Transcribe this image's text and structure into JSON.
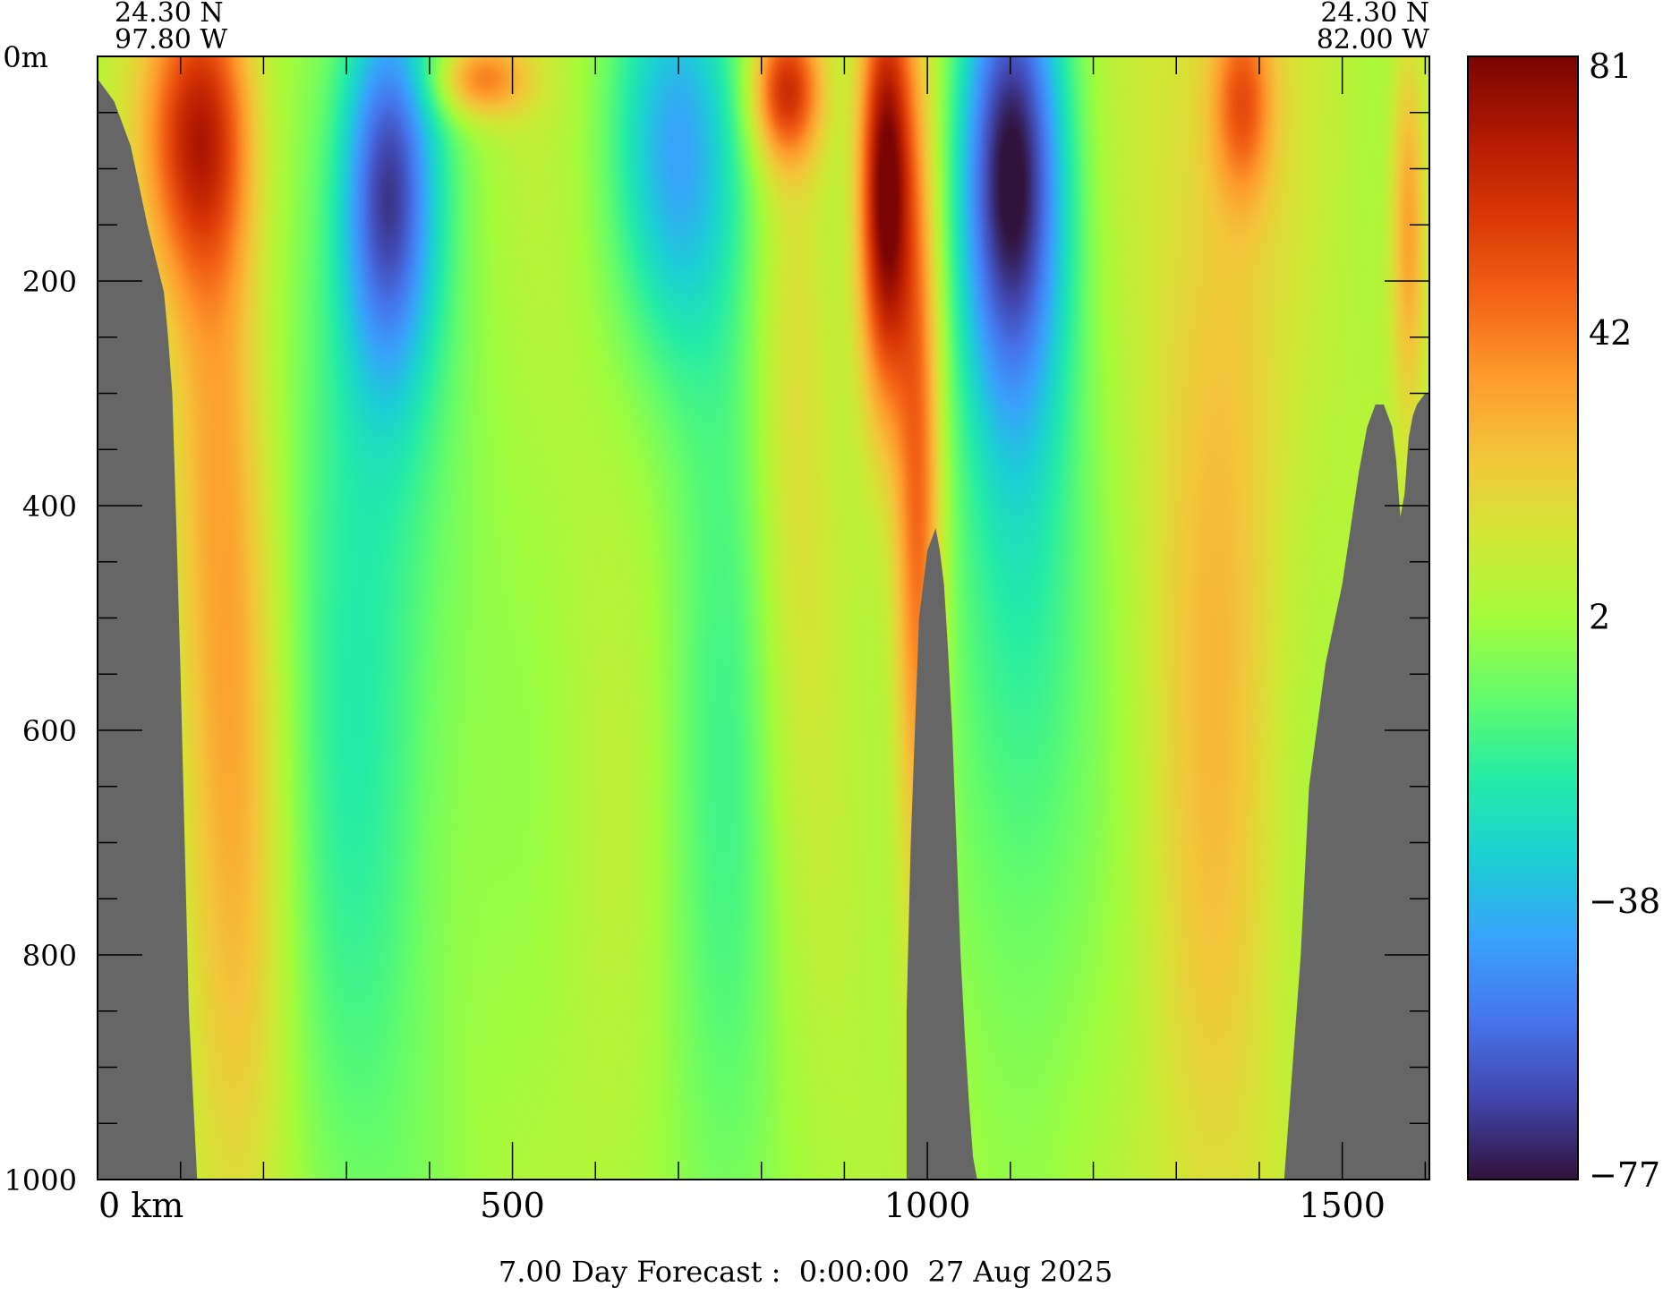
{
  "chart_data": {
    "type": "heatmap",
    "title": "",
    "corner_labels": {
      "left": {
        "lat": "24.30 N",
        "lon": "97.80 W"
      },
      "right": {
        "lat": "24.30 N",
        "lon": "82.00 W"
      }
    },
    "depth_axis": {
      "unit_label": "0m",
      "range": [
        0,
        1000
      ],
      "inverted": true,
      "tick_labels": [
        "200",
        "400",
        "600",
        "800",
        "1000"
      ],
      "tick_values": [
        200,
        400,
        600,
        800,
        1000
      ],
      "minor_step": 50
    },
    "distance_axis": {
      "unit_label": "0 km",
      "range": [
        0,
        1605
      ],
      "tick_labels": [
        "500",
        "1000",
        "1500"
      ],
      "tick_values": [
        500,
        1000,
        1500
      ],
      "minor_step": 100
    },
    "colorbar": {
      "range": [
        -77,
        81
      ],
      "tick_labels": [
        "81",
        "42",
        "2",
        "−38",
        "−77"
      ],
      "tick_values": [
        81,
        42,
        2,
        -38,
        -77
      ],
      "colors": [
        "#30123b",
        "#4145ab",
        "#4675ed",
        "#39a2fc",
        "#1bcfd4",
        "#24eca6",
        "#61fc6c",
        "#a4fc3b",
        "#d1e834",
        "#f3c63a",
        "#fe9b2d",
        "#f36315",
        "#d93806",
        "#b11901",
        "#7a0403"
      ]
    },
    "land_color": "#666666",
    "bathymetry": {
      "distance_km": [
        0,
        20,
        40,
        60,
        70,
        80,
        85,
        90,
        95,
        100,
        105,
        110,
        120,
        970,
        975,
        980,
        985,
        990,
        1000,
        1010,
        1015,
        1020,
        1025,
        1030,
        1035,
        1040,
        1045,
        1050,
        1055,
        1060,
        1430,
        1440,
        1450,
        1460,
        1480,
        1500,
        1510,
        1520,
        1530,
        1540,
        1550,
        1560,
        1565,
        1570,
        1575,
        1580,
        1585,
        1590,
        1600,
        1605
      ],
      "depth_m": [
        20,
        40,
        80,
        150,
        180,
        210,
        250,
        300,
        420,
        550,
        700,
        850,
        1000,
        1000,
        850,
        700,
        600,
        500,
        440,
        420,
        440,
        470,
        530,
        600,
        700,
        800,
        870,
        930,
        980,
        1000,
        1000,
        900,
        800,
        650,
        540,
        470,
        420,
        370,
        330,
        310,
        310,
        330,
        360,
        410,
        390,
        340,
        320,
        310,
        300,
        300
      ]
    },
    "field_description_note_free_features": {
      "anomalies": [
        {
          "x_km": 120,
          "depth_m": 70,
          "value": 48,
          "sx": 45,
          "sd": 90
        },
        {
          "x_km": 140,
          "depth_m": 250,
          "value": 22,
          "sx": 40,
          "sd": 300
        },
        {
          "x_km": 175,
          "depth_m": 700,
          "value": 20,
          "sx": 45,
          "sd": 350
        },
        {
          "x_km": 350,
          "depth_m": 120,
          "value": -58,
          "sx": 40,
          "sd": 120
        },
        {
          "x_km": 325,
          "depth_m": 500,
          "value": -25,
          "sx": 90,
          "sd": 450
        },
        {
          "x_km": 460,
          "depth_m": 20,
          "value": 40,
          "sx": 40,
          "sd": 25
        },
        {
          "x_km": 700,
          "depth_m": 80,
          "value": -42,
          "sx": 55,
          "sd": 130
        },
        {
          "x_km": 760,
          "depth_m": 550,
          "value": -18,
          "sx": 60,
          "sd": 500
        },
        {
          "x_km": 830,
          "depth_m": 30,
          "value": 52,
          "sx": 30,
          "sd": 45
        },
        {
          "x_km": 835,
          "depth_m": 250,
          "value": 18,
          "sx": 35,
          "sd": 300
        },
        {
          "x_km": 950,
          "depth_m": 120,
          "value": 78,
          "sx": 22,
          "sd": 130
        },
        {
          "x_km": 990,
          "depth_m": 420,
          "value": 45,
          "sx": 20,
          "sd": 250
        },
        {
          "x_km": 1100,
          "depth_m": 100,
          "value": -62,
          "sx": 45,
          "sd": 140
        },
        {
          "x_km": 1110,
          "depth_m": 400,
          "value": -30,
          "sx": 60,
          "sd": 350
        },
        {
          "x_km": 1380,
          "depth_m": 40,
          "value": 35,
          "sx": 25,
          "sd": 60
        },
        {
          "x_km": 1350,
          "depth_m": 400,
          "value": 20,
          "sx": 60,
          "sd": 550
        },
        {
          "x_km": 1580,
          "depth_m": 150,
          "value": 30,
          "sx": 15,
          "sd": 120
        }
      ],
      "background": 6
    },
    "footer": "7.00 Day Forecast :  0:00:00  27 Aug 2025"
  }
}
